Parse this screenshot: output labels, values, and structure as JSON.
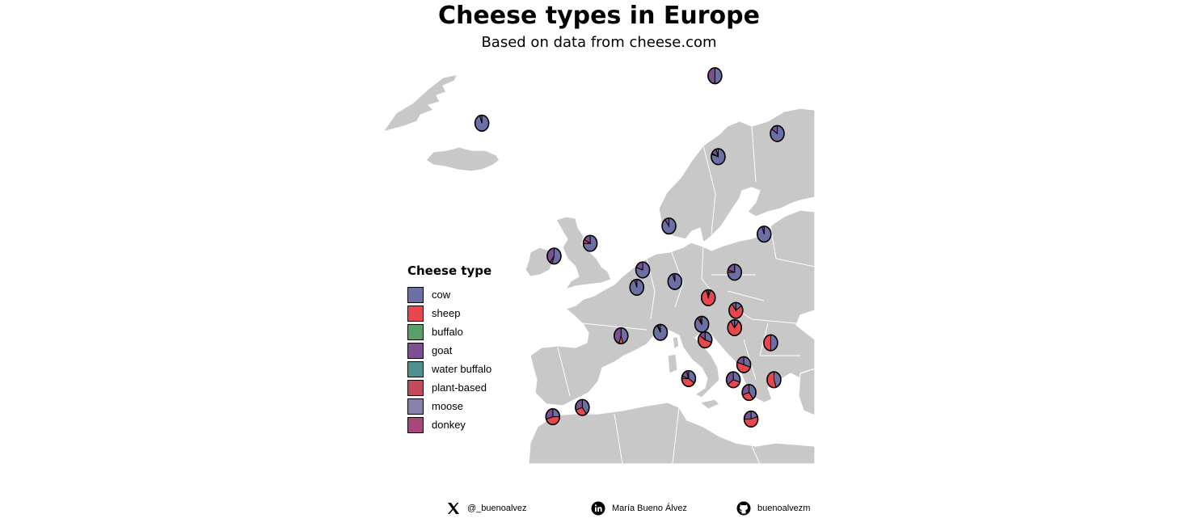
{
  "title": "Cheese types in Europe",
  "subtitle": "Based on data from cheese.com",
  "legend": {
    "title": "Cheese type",
    "items": [
      {
        "label": "cow",
        "color": "#6b6fa3"
      },
      {
        "label": "sheep",
        "color": "#e9474e"
      },
      {
        "label": "buffalo",
        "color": "#5a9e6a"
      },
      {
        "label": "goat",
        "color": "#7b4f92"
      },
      {
        "label": "water buffalo",
        "color": "#4f9190"
      },
      {
        "label": "plant-based",
        "color": "#c24a5c"
      },
      {
        "label": "moose",
        "color": "#8880ad"
      },
      {
        "label": "donkey",
        "color": "#a8487a"
      }
    ]
  },
  "colors": {
    "land": "#c8c8c8",
    "border": "#ffffff",
    "pie_outline": "#000000"
  },
  "chart_data": {
    "type": "pie-map",
    "categories": [
      "cow",
      "sheep",
      "buffalo",
      "goat",
      "water buffalo",
      "plant-based",
      "moose",
      "donkey"
    ],
    "countries": [
      {
        "id": "iceland",
        "lon": -19.0,
        "lat": 64.9,
        "shares": [
          0.95,
          0,
          0,
          0.05,
          0,
          0,
          0,
          0
        ]
      },
      {
        "id": "norway",
        "lon": 16.5,
        "lat": 69.0,
        "shares": [
          0.5,
          0,
          0,
          0.5,
          0,
          0,
          0,
          0
        ]
      },
      {
        "id": "finland",
        "lon": 26.0,
        "lat": 64.0,
        "shares": [
          0.85,
          0,
          0,
          0.15,
          0,
          0,
          0,
          0
        ]
      },
      {
        "id": "sweden",
        "lon": 17.0,
        "lat": 62.0,
        "shares": [
          0.8,
          0.02,
          0,
          0.13,
          0,
          0,
          0.05,
          0
        ]
      },
      {
        "id": "ireland",
        "lon": -8.0,
        "lat": 53.4,
        "shares": [
          0.55,
          0.05,
          0,
          0.4,
          0,
          0,
          0,
          0
        ]
      },
      {
        "id": "united-kingdom",
        "lon": -2.5,
        "lat": 54.5,
        "shares": [
          0.75,
          0.08,
          0,
          0.17,
          0,
          0,
          0,
          0
        ]
      },
      {
        "id": "denmark",
        "lon": 9.5,
        "lat": 56.0,
        "shares": [
          0.9,
          0,
          0,
          0.1,
          0,
          0,
          0,
          0
        ]
      },
      {
        "id": "netherlands",
        "lon": 5.5,
        "lat": 52.2,
        "shares": [
          0.8,
          0,
          0,
          0.2,
          0,
          0,
          0,
          0
        ]
      },
      {
        "id": "belgium",
        "lon": 4.6,
        "lat": 50.7,
        "shares": [
          0.95,
          0,
          0,
          0.05,
          0,
          0,
          0,
          0
        ]
      },
      {
        "id": "germany",
        "lon": 10.4,
        "lat": 51.2,
        "shares": [
          0.95,
          0,
          0,
          0.05,
          0,
          0,
          0,
          0
        ]
      },
      {
        "id": "poland",
        "lon": 19.5,
        "lat": 52.0,
        "shares": [
          0.75,
          0.05,
          0,
          0.2,
          0,
          0,
          0,
          0
        ]
      },
      {
        "id": "lithuania",
        "lon": 24.0,
        "lat": 55.3,
        "shares": [
          0.95,
          0,
          0,
          0.05,
          0,
          0,
          0,
          0
        ]
      },
      {
        "id": "czechia",
        "lon": 15.5,
        "lat": 49.8,
        "shares": [
          0.05,
          0.9,
          0,
          0.05,
          0,
          0,
          0,
          0
        ]
      },
      {
        "id": "slovakia",
        "lon": 19.7,
        "lat": 48.7,
        "shares": [
          0.15,
          0.75,
          0,
          0.1,
          0,
          0,
          0,
          0
        ]
      },
      {
        "id": "hungary",
        "lon": 19.5,
        "lat": 47.2,
        "shares": [
          0.1,
          0.8,
          0,
          0.1,
          0,
          0,
          0,
          0
        ]
      },
      {
        "id": "france",
        "lon": 2.2,
        "lat": 46.5,
        "shares": [
          0.45,
          0.1,
          0,
          0.45,
          0,
          0,
          0,
          0
        ]
      },
      {
        "id": "switzerland",
        "lon": 8.2,
        "lat": 46.8,
        "shares": [
          0.92,
          0.03,
          0,
          0.05,
          0,
          0,
          0,
          0
        ]
      },
      {
        "id": "austria",
        "lon": 14.5,
        "lat": 47.5,
        "shares": [
          0.9,
          0.05,
          0,
          0.05,
          0,
          0,
          0,
          0
        ]
      },
      {
        "id": "romania",
        "lon": 25.0,
        "lat": 45.9,
        "shares": [
          0.5,
          0.5,
          0,
          0,
          0,
          0,
          0,
          0
        ]
      },
      {
        "id": "slovenia",
        "lon": 15.0,
        "lat": 46.15,
        "shares": [
          0.3,
          0.55,
          0,
          0.15,
          0,
          0,
          0,
          0
        ]
      },
      {
        "id": "serbia",
        "lon": 20.9,
        "lat": 44.0,
        "shares": [
          0.3,
          0.5,
          0,
          0.2,
          0,
          0,
          0,
          0
        ]
      },
      {
        "id": "bulgaria",
        "lon": 25.5,
        "lat": 42.7,
        "shares": [
          0.45,
          0.55,
          0,
          0,
          0,
          0,
          0,
          0
        ]
      },
      {
        "id": "italy",
        "lon": 12.5,
        "lat": 42.8,
        "shares": [
          0.35,
          0.4,
          0.05,
          0.15,
          0,
          0,
          0,
          0.05
        ]
      },
      {
        "id": "montenegro",
        "lon": 19.3,
        "lat": 42.7,
        "shares": [
          0.3,
          0.35,
          0,
          0.35,
          0,
          0,
          0,
          0
        ]
      },
      {
        "id": "north-macedonia",
        "lon": 21.7,
        "lat": 41.6,
        "shares": [
          0.4,
          0.3,
          0,
          0.3,
          0,
          0,
          0,
          0
        ]
      },
      {
        "id": "greece",
        "lon": 22.0,
        "lat": 39.3,
        "shares": [
          0.2,
          0.55,
          0,
          0.25,
          0,
          0,
          0,
          0
        ]
      },
      {
        "id": "spain",
        "lon": -3.7,
        "lat": 40.3,
        "shares": [
          0.4,
          0.3,
          0,
          0.3,
          0,
          0,
          0,
          0
        ]
      },
      {
        "id": "portugal",
        "lon": -8.2,
        "lat": 39.5,
        "shares": [
          0.25,
          0.45,
          0,
          0.3,
          0,
          0,
          0,
          0
        ]
      }
    ]
  },
  "footer": {
    "twitter": {
      "label": "@_buenoalvez",
      "icon": "x-icon"
    },
    "linkedin": {
      "label": "María Bueno Álvez",
      "icon": "linkedin-icon"
    },
    "github": {
      "label": "buenoalvezm",
      "icon": "github-icon"
    }
  }
}
